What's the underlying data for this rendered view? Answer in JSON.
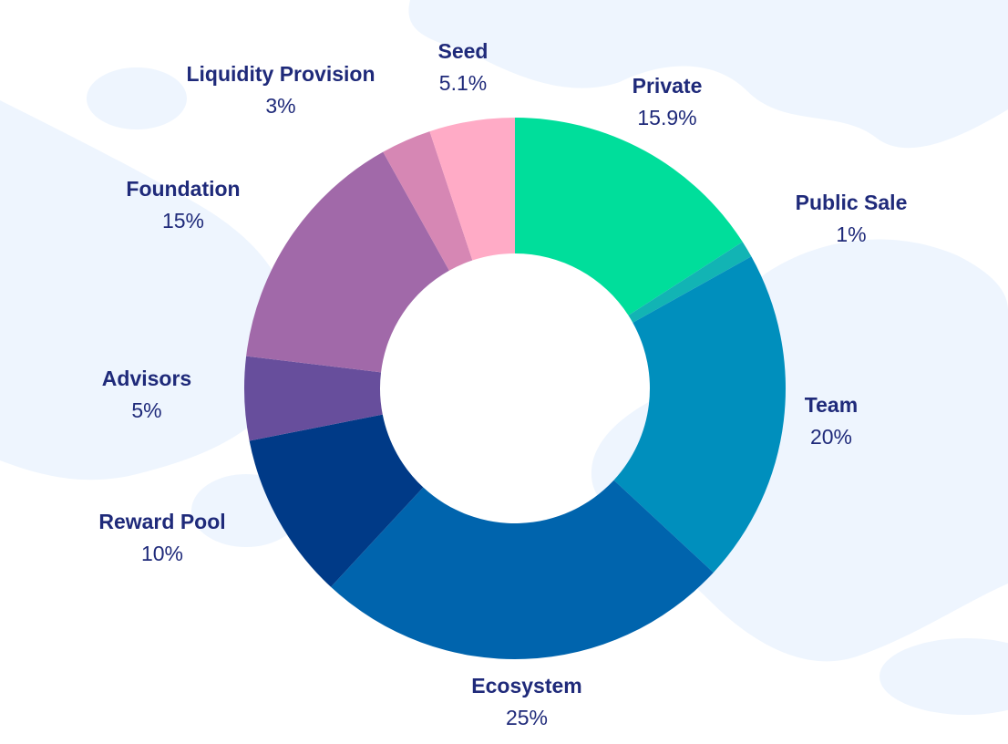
{
  "chart_data": {
    "type": "pie",
    "donut": true,
    "legend": "none",
    "categories": [
      "Private",
      "Public Sale",
      "Team",
      "Ecosystem",
      "Reward Pool",
      "Advisors",
      "Foundation",
      "Liquidity Provision",
      "Seed"
    ],
    "values": [
      15.9,
      1,
      20,
      25,
      10,
      5,
      15,
      3,
      5.1
    ],
    "value_labels": [
      "15.9%",
      "1%",
      "20%",
      "25%",
      "10%",
      "5%",
      "15%",
      "3%",
      "5.1%"
    ],
    "colors": [
      "#00de9b",
      "#12b4b4",
      "#008fbd",
      "#0064ad",
      "#003a87",
      "#674e9c",
      "#a169a9",
      "#d687b4",
      "#ffabc6"
    ]
  }
}
